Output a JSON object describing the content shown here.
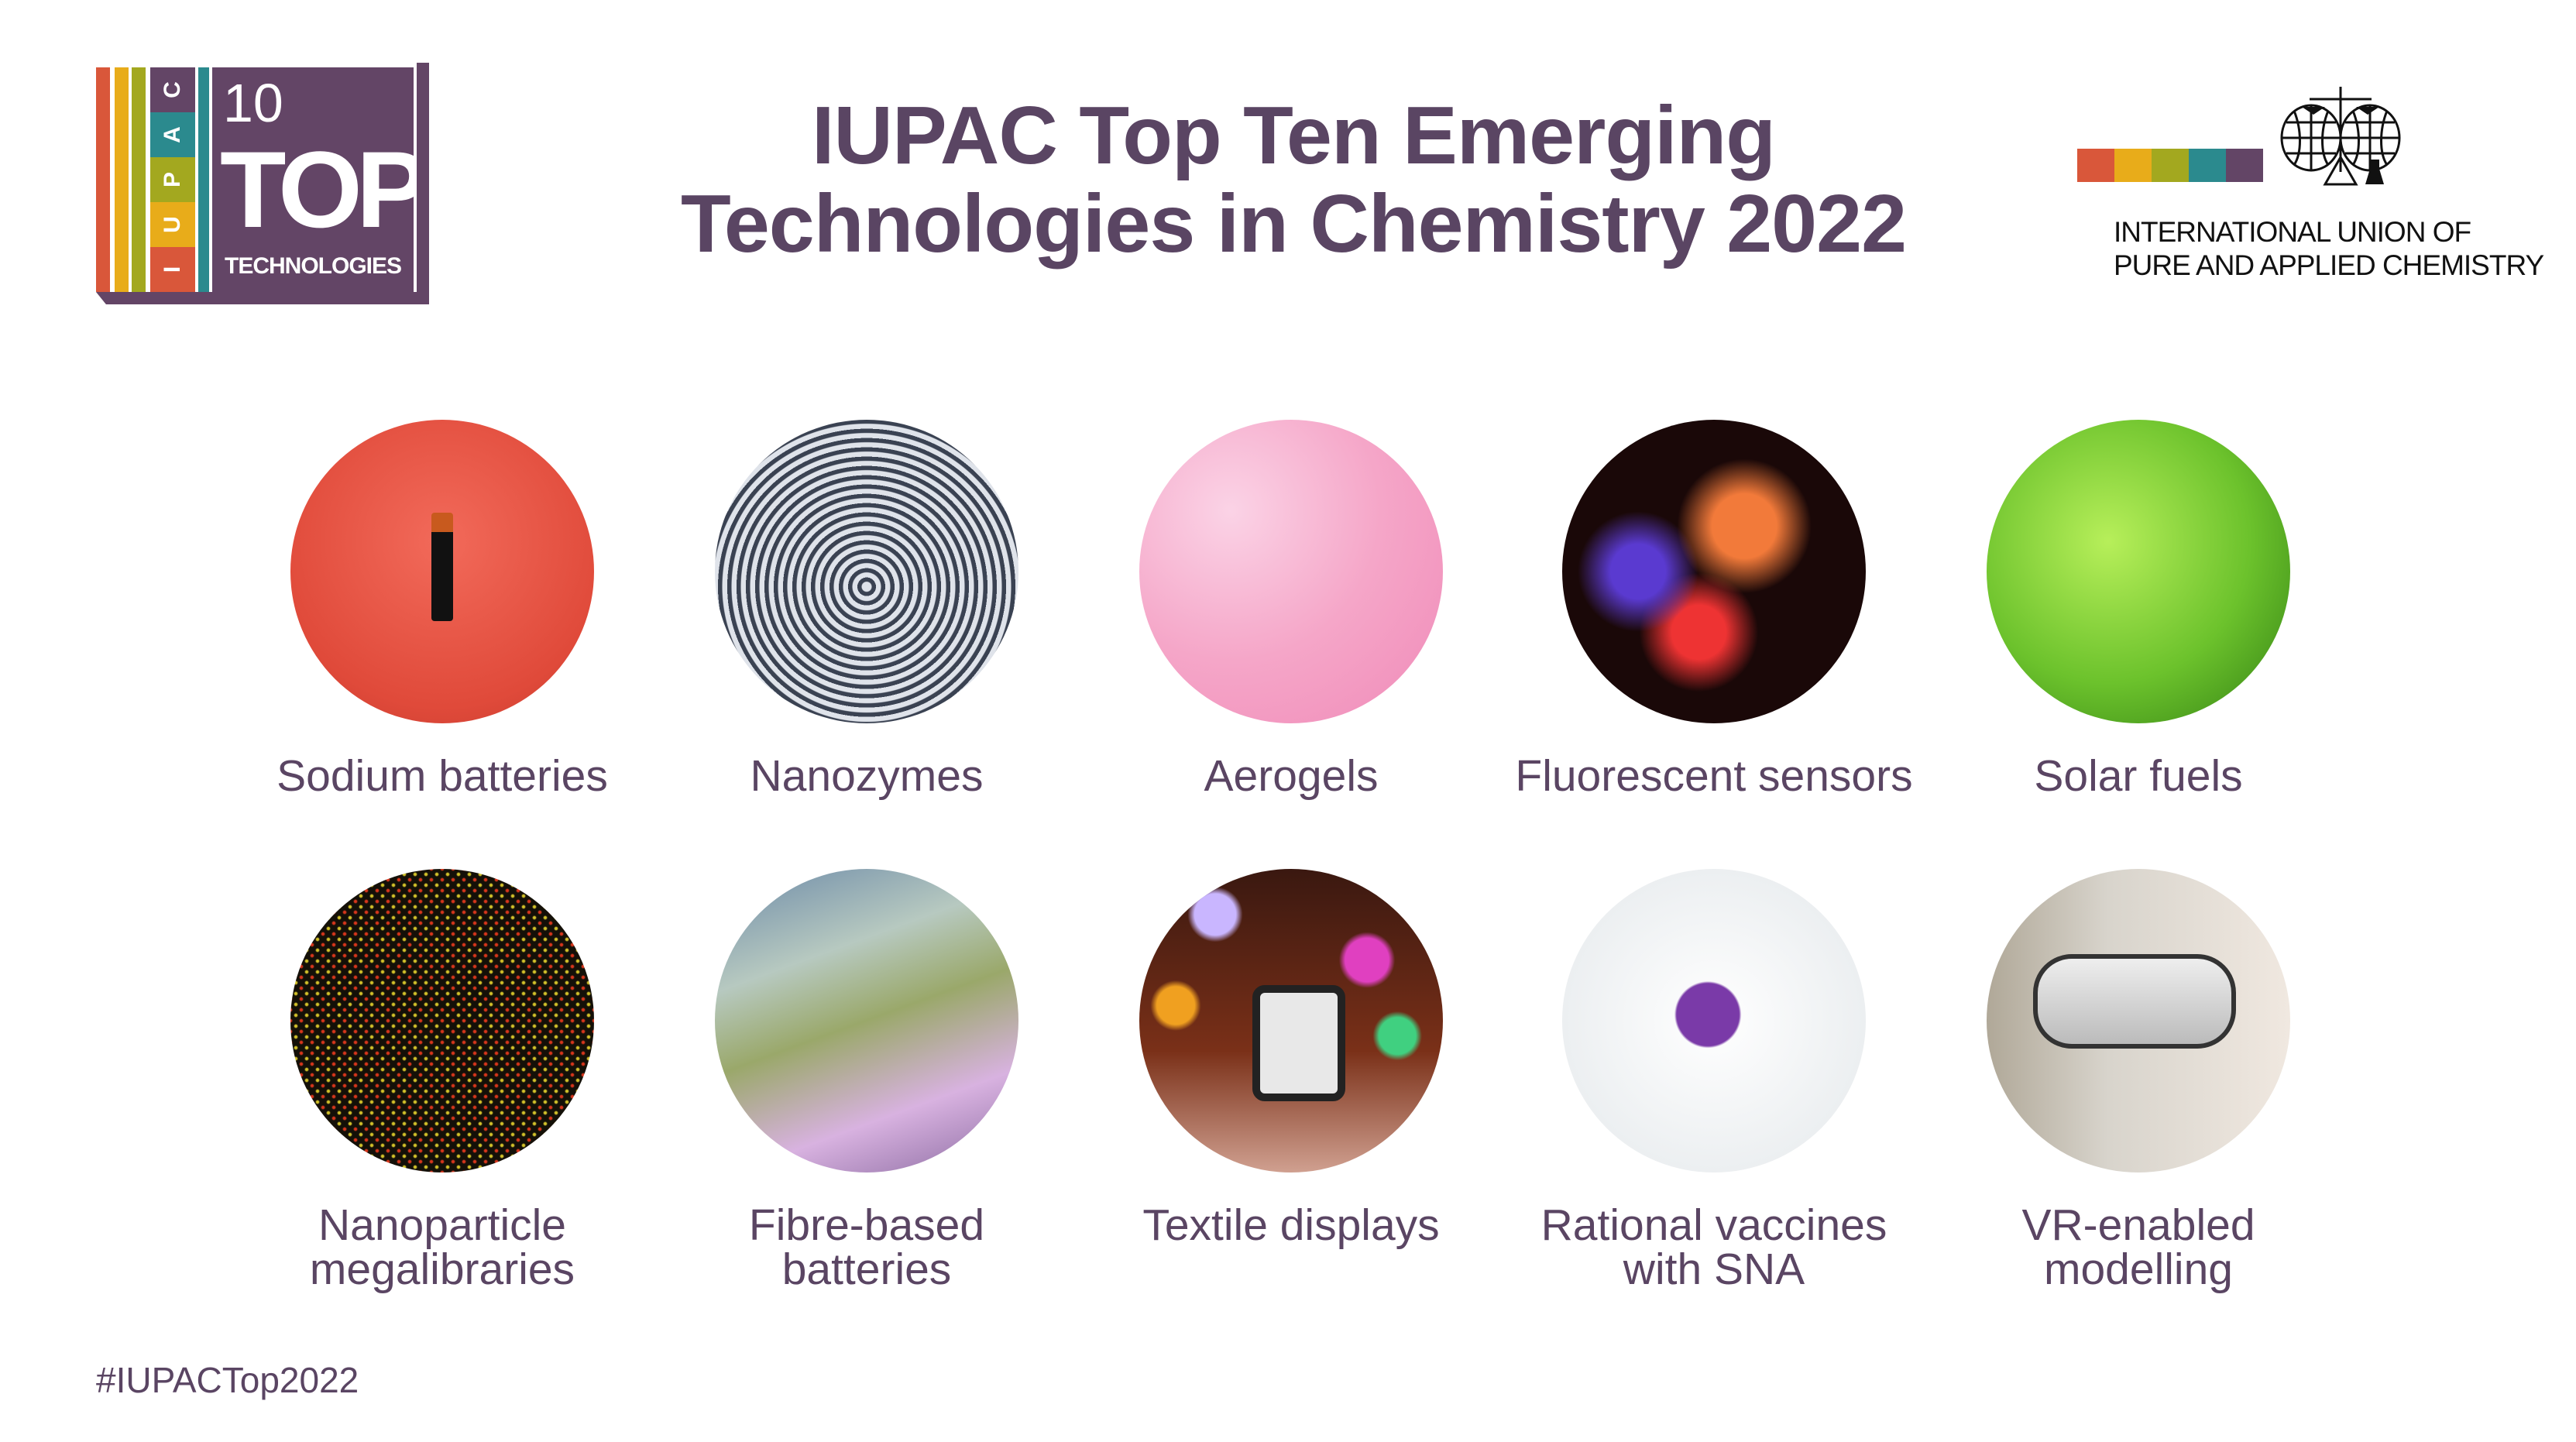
{
  "logo": {
    "stripe_letters": [
      "I",
      "U",
      "P",
      "A",
      "C"
    ],
    "number": "10",
    "word": "TOP",
    "subword": "TECHNOLOGIES",
    "colors": [
      "#d9573a",
      "#e8ac1a",
      "#a3a81f",
      "#2b8a8e",
      "#634566"
    ]
  },
  "title": {
    "line1": "IUPAC Top Ten Emerging",
    "line2": "Technologies in Chemistry 2022"
  },
  "organization": {
    "line1": "INTERNATIONAL UNION OF",
    "line2": "PURE AND APPLIED CHEMISTRY",
    "emblem": "globes-scales-flask-emblem"
  },
  "technologies": [
    {
      "line1": "Sodium batteries",
      "line2": ""
    },
    {
      "line1": "Nanozymes",
      "line2": ""
    },
    {
      "line1": "Aerogels",
      "line2": ""
    },
    {
      "line1": "Fluorescent sensors",
      "line2": ""
    },
    {
      "line1": "Solar fuels",
      "line2": ""
    },
    {
      "line1": "Nanoparticle",
      "line2": "megalibraries"
    },
    {
      "line1": "Fibre-based",
      "line2": "batteries"
    },
    {
      "line1": "Textile displays",
      "line2": ""
    },
    {
      "line1": "Rational vaccines",
      "line2": "with SNA"
    },
    {
      "line1": "VR-enabled",
      "line2": "modelling"
    }
  ],
  "hashtag": "#IUPACTop2022",
  "colors": {
    "text": "#5a4563",
    "orange": "#d9573a",
    "yellow": "#e8ac1a",
    "olive": "#a3a81f",
    "teal": "#2b8a8e",
    "purple": "#634566"
  }
}
